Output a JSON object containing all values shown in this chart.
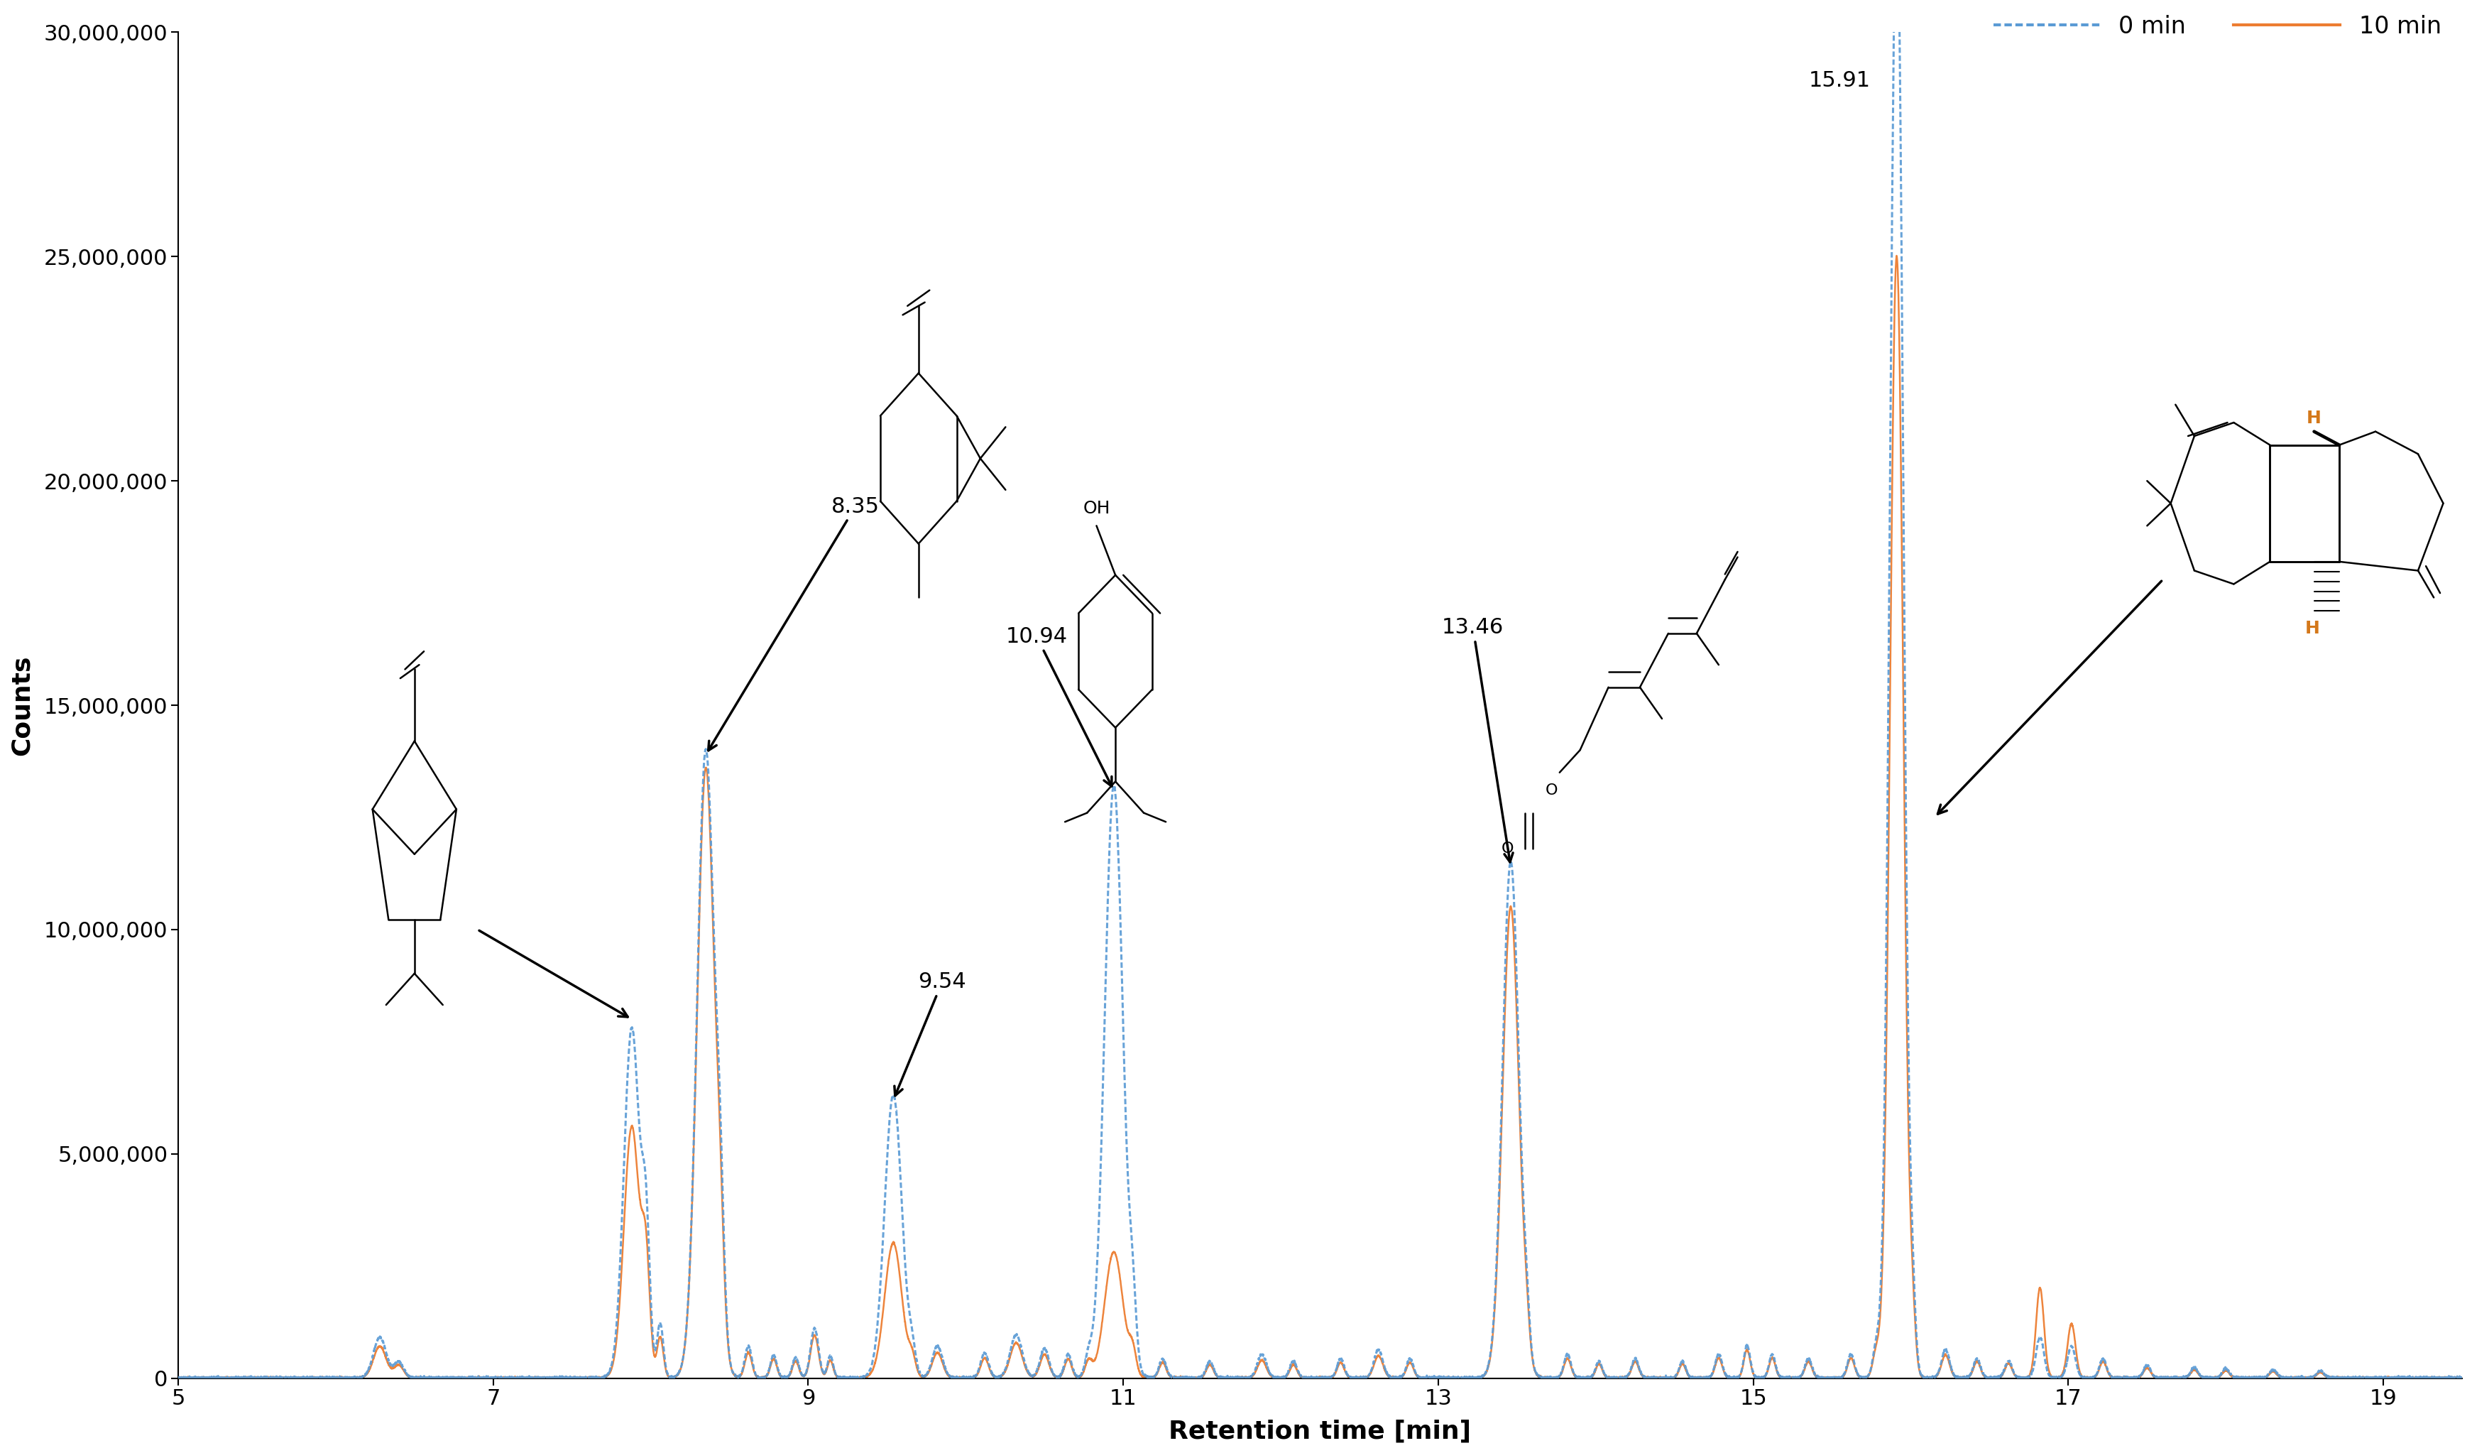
{
  "title": "",
  "xlabel": "Retention time [min]",
  "ylabel": "Counts",
  "xlim": [
    5,
    19.5
  ],
  "ylim": [
    0,
    30000000
  ],
  "xticks": [
    5,
    7,
    9,
    11,
    13,
    15,
    17,
    19
  ],
  "yticks": [
    0,
    5000000,
    10000000,
    15000000,
    20000000,
    25000000,
    30000000
  ],
  "ytick_labels": [
    "0",
    "5,000,000",
    "10,000,000",
    "15,000,000",
    "20,000,000",
    "25,000,000",
    "30,000,000"
  ],
  "line0_color": "#5B9BD5",
  "line10_color": "#ED7D31",
  "background_color": "#ffffff",
  "legend_0": "0 min",
  "legend_10": "10 min",
  "peak_label_15_91": "15.91",
  "peak_label_8_35": "8.35",
  "peak_label_9_54": "9.54",
  "peak_label_10_94": "10.94",
  "peak_label_13_46": "13.46",
  "annotation_fontsize": 22,
  "tick_fontsize": 22,
  "axis_label_fontsize": 26
}
